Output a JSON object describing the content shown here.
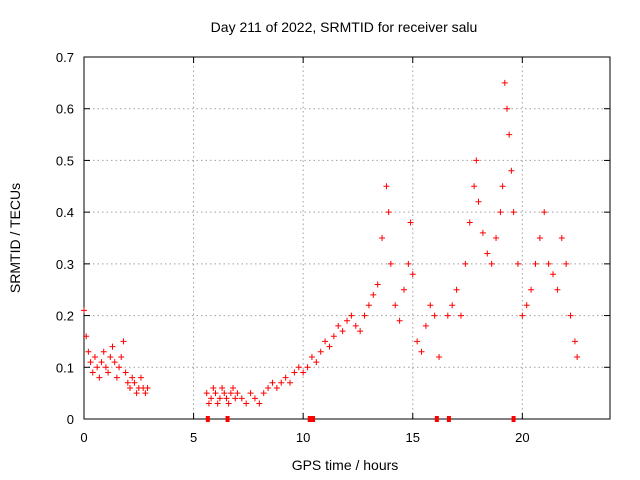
{
  "chart_data": {
    "type": "scatter",
    "title": "Day 211 of 2022, SRMTID for receiver salu",
    "xlabel": "GPS time / hours",
    "ylabel": "SRMTID / TECUs",
    "xlim": [
      0,
      24
    ],
    "ylim": [
      0,
      0.7
    ],
    "xticks": [
      0,
      5,
      10,
      15,
      20
    ],
    "yticks": [
      0,
      0.1,
      0.2,
      0.3,
      0.4,
      0.5,
      0.6,
      0.7
    ],
    "xtick_labels": [
      "0",
      "5",
      "10",
      "15",
      "20"
    ],
    "ytick_labels": [
      "0",
      "0.1",
      "0.2",
      "0.3",
      "0.4",
      "0.5",
      "0.6",
      "0.7"
    ],
    "grid": true,
    "marker": "+",
    "color": "#ff0000",
    "series": [
      {
        "name": "SRMTID",
        "x": [
          0.0,
          0.1,
          0.2,
          0.3,
          0.4,
          0.5,
          0.6,
          0.7,
          0.8,
          0.9,
          1.0,
          1.1,
          1.2,
          1.3,
          1.4,
          1.5,
          1.6,
          1.7,
          1.8,
          1.9,
          2.0,
          2.1,
          2.2,
          2.3,
          2.4,
          2.5,
          2.6,
          2.7,
          2.8,
          2.9,
          5.6,
          5.7,
          5.8,
          5.9,
          6.0,
          6.1,
          6.2,
          6.3,
          6.4,
          6.5,
          6.6,
          6.7,
          6.8,
          6.9,
          7.0,
          7.2,
          7.4,
          7.6,
          7.8,
          8.0,
          8.2,
          8.4,
          8.6,
          8.8,
          9.0,
          9.2,
          9.4,
          9.6,
          9.8,
          10.0,
          10.2,
          10.4,
          10.6,
          10.8,
          11.0,
          11.2,
          11.4,
          11.6,
          11.8,
          12.0,
          12.2,
          12.4,
          12.6,
          12.8,
          13.0,
          13.2,
          13.4,
          13.6,
          13.8,
          13.9,
          14.0,
          14.2,
          14.4,
          14.6,
          14.8,
          14.9,
          15.0,
          15.2,
          15.4,
          15.6,
          15.8,
          16.0,
          16.2,
          16.6,
          16.8,
          17.0,
          17.2,
          17.4,
          17.6,
          17.8,
          17.9,
          18.0,
          18.2,
          18.4,
          18.6,
          18.8,
          19.0,
          19.1,
          19.2,
          19.3,
          19.4,
          19.5,
          19.6,
          19.8,
          20.0,
          20.2,
          20.4,
          20.6,
          20.8,
          21.0,
          21.2,
          21.4,
          21.6,
          21.8,
          22.0,
          22.2,
          22.4,
          22.5
        ],
        "y": [
          0.21,
          0.16,
          0.13,
          0.11,
          0.09,
          0.12,
          0.1,
          0.08,
          0.11,
          0.13,
          0.1,
          0.09,
          0.12,
          0.14,
          0.11,
          0.08,
          0.1,
          0.12,
          0.15,
          0.09,
          0.07,
          0.06,
          0.08,
          0.07,
          0.05,
          0.06,
          0.08,
          0.06,
          0.05,
          0.06,
          0.05,
          0.03,
          0.04,
          0.06,
          0.05,
          0.03,
          0.04,
          0.06,
          0.05,
          0.04,
          0.03,
          0.05,
          0.06,
          0.04,
          0.05,
          0.04,
          0.03,
          0.05,
          0.04,
          0.03,
          0.05,
          0.06,
          0.07,
          0.06,
          0.07,
          0.08,
          0.07,
          0.09,
          0.1,
          0.09,
          0.1,
          0.12,
          0.11,
          0.13,
          0.15,
          0.14,
          0.16,
          0.18,
          0.17,
          0.19,
          0.2,
          0.18,
          0.17,
          0.2,
          0.22,
          0.24,
          0.26,
          0.35,
          0.45,
          0.4,
          0.3,
          0.22,
          0.19,
          0.25,
          0.3,
          0.38,
          0.28,
          0.15,
          0.13,
          0.18,
          0.22,
          0.2,
          0.12,
          0.2,
          0.22,
          0.25,
          0.2,
          0.3,
          0.38,
          0.45,
          0.5,
          0.42,
          0.36,
          0.32,
          0.3,
          0.35,
          0.4,
          0.45,
          0.65,
          0.6,
          0.55,
          0.48,
          0.4,
          0.3,
          0.2,
          0.22,
          0.25,
          0.3,
          0.35,
          0.4,
          0.3,
          0.28,
          0.25,
          0.35,
          0.3,
          0.2,
          0.15,
          0.12
        ],
        "zero_markers_x": [
          5.65,
          6.55,
          10.3,
          10.45,
          16.1,
          16.65,
          19.6
        ]
      }
    ]
  }
}
